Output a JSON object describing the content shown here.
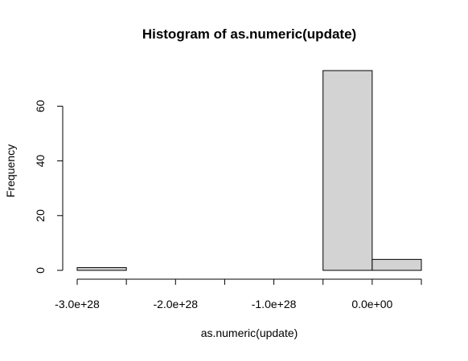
{
  "chart_data": {
    "type": "bar",
    "title": "Histogram of as.numeric(update)",
    "xlabel": "as.numeric(update)",
    "ylabel": "Frequency",
    "bins": [
      {
        "start": -3e+28,
        "end": -2.5e+28,
        "count": 1
      },
      {
        "start": -2.5e+28,
        "end": -2e+28,
        "count": 0
      },
      {
        "start": -2e+28,
        "end": -1.5e+28,
        "count": 0
      },
      {
        "start": -1.5e+28,
        "end": -1e+28,
        "count": 0
      },
      {
        "start": -1e+28,
        "end": -5e+27,
        "count": 0
      },
      {
        "start": -5e+27,
        "end": 0.0,
        "count": 73
      },
      {
        "start": 0.0,
        "end": 5e+27,
        "count": 4
      }
    ],
    "x_ticks": [
      -3e+28,
      -2.5e+28,
      -2e+28,
      -1.5e+28,
      -1e+28,
      -5e+27,
      0.0,
      5e+27
    ],
    "x_tick_labels": [
      {
        "value": -3e+28,
        "label": "-3.0e+28"
      },
      {
        "value": -2e+28,
        "label": "-2.0e+28"
      },
      {
        "value": -1e+28,
        "label": "-1.0e+28"
      },
      {
        "value": 0.0,
        "label": "0.0e+00"
      }
    ],
    "y_ticks": [
      0,
      20,
      40,
      60
    ],
    "y_tick_labels": [
      "0",
      "20",
      "40",
      "60"
    ],
    "xlim": [
      -3e+28,
      5e+27
    ],
    "ylim": [
      0,
      73
    ],
    "bar_fill": "#d3d3d3",
    "bar_stroke": "#000000",
    "grid": false,
    "legend": "none"
  }
}
